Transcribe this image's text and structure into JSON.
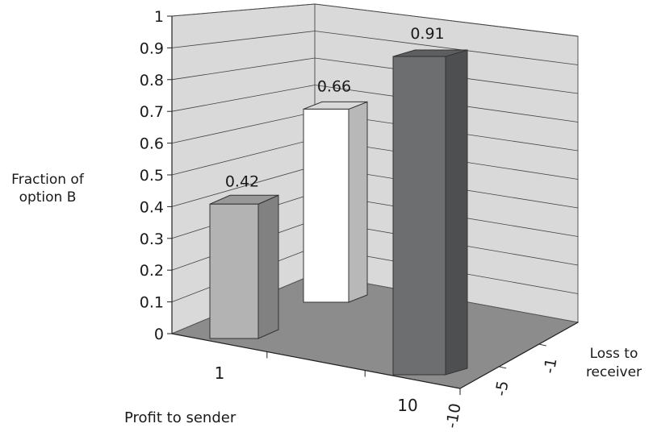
{
  "chart_data": {
    "type": "bar",
    "subtype": "3d-bar",
    "title": "",
    "ylabel": "Fraction of option B",
    "xlabel": "Profit to sender",
    "zlabel": "Loss to receiver",
    "ylim": [
      0,
      1
    ],
    "y_ticks": [
      "0",
      "0.1",
      "0.2",
      "0.3",
      "0.4",
      "0.5",
      "0.6",
      "0.7",
      "0.8",
      "0.9",
      "1"
    ],
    "x_ticks": [
      "1",
      "10"
    ],
    "z_ticks": [
      "-1",
      "-5",
      "-10"
    ],
    "grid": true,
    "bars": [
      {
        "profit_to_sender": "1",
        "loss_to_receiver": "-1",
        "value": 0.42,
        "label": "0.42",
        "color": "#b3b3b3"
      },
      {
        "profit_to_sender": "1",
        "loss_to_receiver": "-5",
        "value": 0.66,
        "label": "0.66",
        "color": "#ffffff"
      },
      {
        "profit_to_sender": "10",
        "loss_to_receiver": "-10",
        "value": 0.91,
        "label": "0.91",
        "color": "#6d6e70"
      }
    ],
    "colors": {
      "back_wall": "#d9d9d9",
      "floor": "#8c8c8c",
      "gridline": "#444444"
    }
  }
}
